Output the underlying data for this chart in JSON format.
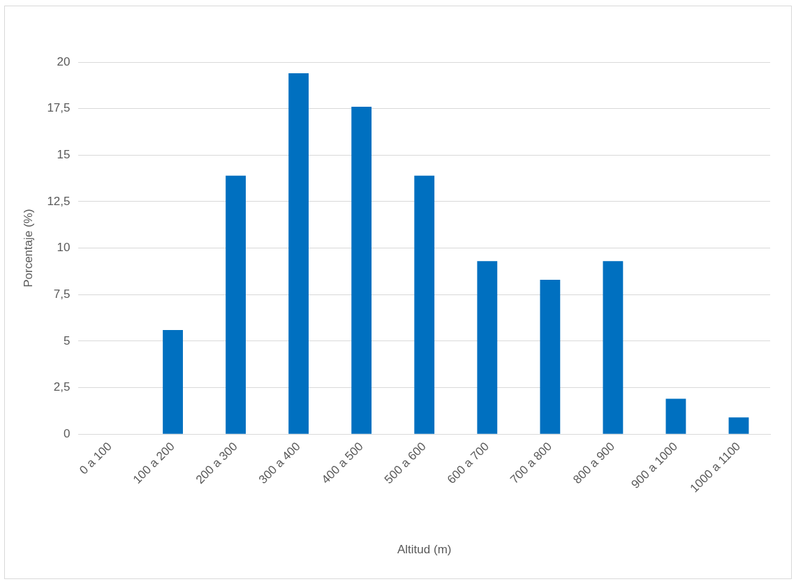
{
  "chart_data": {
    "type": "bar",
    "xlabel": "Altitud (m)",
    "ylabel": "Porcentaje (%)",
    "categories": [
      "0 a 100",
      "100 a 200",
      "200 a 300",
      "300 a 400",
      "400 a 500",
      "500 a 600",
      "600 a 700",
      "700 a 800",
      "800 a 900",
      "900 a 1000",
      "1000 a 1100"
    ],
    "values": [
      0,
      5.6,
      13.9,
      19.4,
      17.6,
      13.9,
      9.3,
      8.3,
      9.3,
      1.9,
      0.9
    ],
    "color": "#0070c0",
    "ylim": [
      0,
      20
    ],
    "yticks": [
      0,
      {
        "value": 2.5,
        "label": "2,5"
      },
      5,
      {
        "value": 7.5,
        "label": "7,5"
      },
      10,
      {
        "value": 12.5,
        "label": "12,5"
      },
      15,
      {
        "value": 17.5,
        "label": "17,5"
      },
      20
    ],
    "grid": "y",
    "legend": false
  }
}
